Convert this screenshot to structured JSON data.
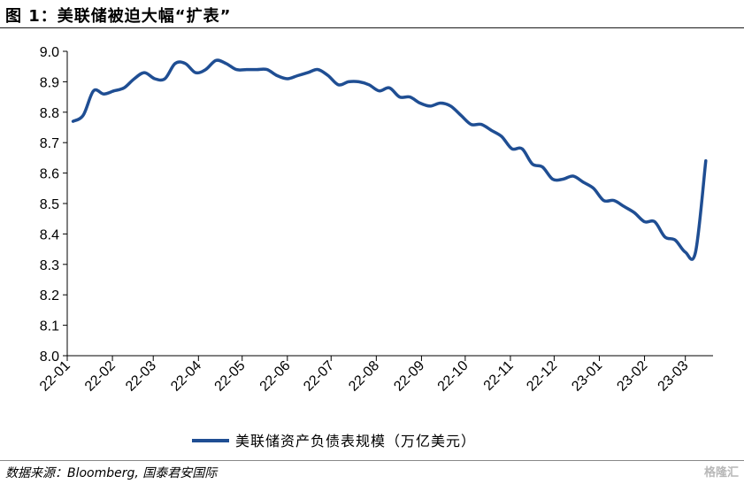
{
  "title": "图 1：美联储被迫大幅“扩表”",
  "source": "数据来源：Bloomberg, 国泰君安国际",
  "watermark": "格隆汇",
  "colors": {
    "series": "#1f4e93",
    "axis": "#000000"
  },
  "chart_data": {
    "type": "line",
    "x_tick_labels": [
      "22-01",
      "22-02",
      "22-03",
      "22-04",
      "22-05",
      "22-06",
      "22-07",
      "22-08",
      "22-09",
      "22-10",
      "22-11",
      "22-12",
      "23-01",
      "23-02",
      "23-03"
    ],
    "y_tick_labels": [
      "8.0",
      "8.1",
      "8.2",
      "8.3",
      "8.4",
      "8.5",
      "8.6",
      "8.7",
      "8.8",
      "8.9",
      "9.0"
    ],
    "ylim": [
      8.0,
      9.0
    ],
    "grid": false,
    "legend_position": "bottom",
    "series": [
      {
        "name": "美联储资产负债表规模（万亿美元）",
        "color": "#1f4e93",
        "x": [
          "2022-01-05",
          "2022-01-12",
          "2022-01-19",
          "2022-01-26",
          "2022-02-02",
          "2022-02-09",
          "2022-02-16",
          "2022-02-23",
          "2022-03-02",
          "2022-03-09",
          "2022-03-16",
          "2022-03-23",
          "2022-03-30",
          "2022-04-06",
          "2022-04-13",
          "2022-04-20",
          "2022-04-27",
          "2022-05-04",
          "2022-05-11",
          "2022-05-18",
          "2022-05-25",
          "2022-06-01",
          "2022-06-08",
          "2022-06-15",
          "2022-06-22",
          "2022-06-29",
          "2022-07-06",
          "2022-07-13",
          "2022-07-20",
          "2022-07-27",
          "2022-08-03",
          "2022-08-10",
          "2022-08-17",
          "2022-08-24",
          "2022-08-31",
          "2022-09-07",
          "2022-09-14",
          "2022-09-21",
          "2022-09-28",
          "2022-10-05",
          "2022-10-12",
          "2022-10-19",
          "2022-10-26",
          "2022-11-02",
          "2022-11-09",
          "2022-11-16",
          "2022-11-23",
          "2022-11-30",
          "2022-12-07",
          "2022-12-14",
          "2022-12-21",
          "2022-12-28",
          "2023-01-04",
          "2023-01-11",
          "2023-01-18",
          "2023-01-25",
          "2023-02-01",
          "2023-02-08",
          "2023-02-15",
          "2023-02-22",
          "2023-03-01",
          "2023-03-08",
          "2023-03-15"
        ],
        "values": [
          8.77,
          8.79,
          8.87,
          8.86,
          8.87,
          8.88,
          8.91,
          8.93,
          8.91,
          8.91,
          8.96,
          8.96,
          8.93,
          8.94,
          8.97,
          8.96,
          8.94,
          8.94,
          8.94,
          8.94,
          8.92,
          8.91,
          8.92,
          8.93,
          8.94,
          8.92,
          8.89,
          8.9,
          8.9,
          8.89,
          8.87,
          8.88,
          8.85,
          8.85,
          8.83,
          8.82,
          8.83,
          8.82,
          8.79,
          8.76,
          8.76,
          8.74,
          8.72,
          8.68,
          8.68,
          8.63,
          8.62,
          8.58,
          8.58,
          8.59,
          8.57,
          8.55,
          8.51,
          8.51,
          8.49,
          8.47,
          8.44,
          8.44,
          8.39,
          8.38,
          8.34,
          8.34,
          8.64
        ]
      }
    ]
  }
}
